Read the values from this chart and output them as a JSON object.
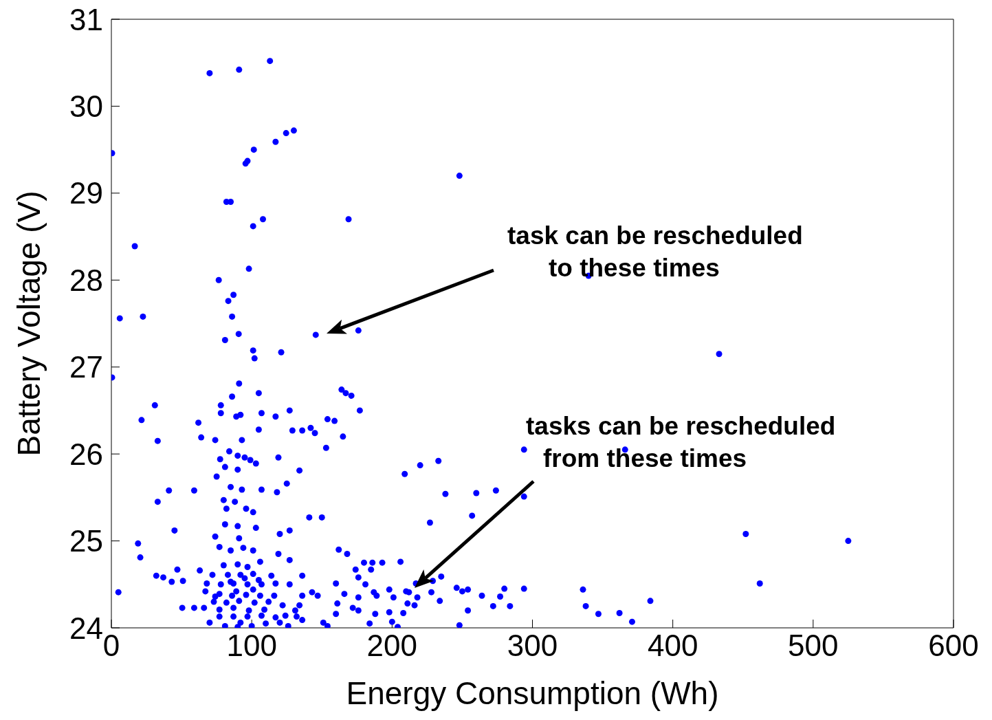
{
  "chart_data": {
    "type": "scatter",
    "xlabel": "Energy Consumption (Wh)",
    "ylabel": "Battery Voltage (V)",
    "xlim": [
      0,
      600
    ],
    "ylim": [
      24,
      31
    ],
    "xticks": [
      0,
      100,
      200,
      300,
      400,
      500,
      600
    ],
    "yticks": [
      24,
      25,
      26,
      27,
      28,
      29,
      30,
      31
    ],
    "color": "#0000ff",
    "marker": "circle",
    "x": [
      70,
      91,
      113,
      0.5,
      117,
      124.5,
      130,
      101.5,
      95.6,
      97,
      82,
      85,
      248,
      169,
      108,
      101,
      16.7,
      98,
      76.5,
      340,
      87,
      83.3,
      86,
      6,
      22.5,
      90.7,
      81,
      145.6,
      176,
      433,
      101,
      121,
      102,
      0.5,
      91,
      164,
      167,
      171,
      105,
      86,
      31,
      78,
      127,
      177,
      107,
      78,
      89,
      92,
      21.5,
      62,
      117,
      154,
      159,
      142,
      129,
      136,
      145,
      105,
      165,
      33,
      64,
      74,
      93,
      153,
      294,
      366,
      84,
      90,
      95,
      77.5,
      119,
      99,
      233,
      220,
      81,
      90,
      103,
      134,
      209,
      75,
      41,
      59,
      85,
      93,
      107,
      118,
      125,
      238,
      260,
      274,
      33,
      80,
      88,
      96,
      101,
      82,
      294,
      257,
      141,
      150,
      81,
      90,
      103,
      45,
      227,
      127,
      452,
      525,
      19,
      120,
      74,
      91,
      77,
      85,
      94,
      101,
      162,
      168,
      20.6,
      119,
      180,
      186,
      193,
      206,
      127,
      106,
      63,
      47,
      32,
      37,
      174,
      185,
      72,
      83,
      92,
      101,
      114,
      136,
      176,
      235,
      51,
      43,
      160,
      181,
      217,
      229,
      68,
      78,
      87,
      97,
      107,
      117,
      127,
      462,
      198,
      210,
      246,
      254,
      280,
      294,
      336,
      212,
      5,
      143,
      166,
      187,
      228,
      250,
      67,
      77,
      86,
      96,
      106,
      116,
      136,
      147,
      264,
      277,
      176,
      189,
      201,
      218,
      384,
      234,
      73,
      82,
      91,
      102,
      112,
      122,
      134,
      161,
      211,
      216,
      338,
      272,
      284,
      66,
      50.5,
      59,
      77,
      87,
      98,
      109,
      131,
      172,
      176,
      254,
      198,
      208,
      347,
      362,
      160,
      188,
      124,
      77,
      87,
      97,
      107,
      117,
      132,
      151,
      371,
      200,
      92,
      70,
      110,
      120,
      136,
      184,
      248,
      81,
      90,
      100,
      126,
      154,
      204,
      80,
      90,
      97,
      95,
      105,
      85,
      89,
      101,
      74
    ],
    "values": [
      30.38,
      30.42,
      30.52,
      29.46,
      29.59,
      29.69,
      29.72,
      29.5,
      29.34,
      29.37,
      28.9,
      28.9,
      29.2,
      28.7,
      28.7,
      28.62,
      28.39,
      28.13,
      28.0,
      28.05,
      27.83,
      27.76,
      27.58,
      27.56,
      27.58,
      27.38,
      27.31,
      27.37,
      27.42,
      27.15,
      27.19,
      27.17,
      27.1,
      26.88,
      26.81,
      26.74,
      26.7,
      26.67,
      26.7,
      26.66,
      26.56,
      26.56,
      26.5,
      26.5,
      26.47,
      26.47,
      26.43,
      26.45,
      26.39,
      26.36,
      26.43,
      26.4,
      26.38,
      26.3,
      26.27,
      26.27,
      26.24,
      26.28,
      26.2,
      26.15,
      26.19,
      26.16,
      26.16,
      26.07,
      26.05,
      26.05,
      26.03,
      25.98,
      25.96,
      25.94,
      25.96,
      25.93,
      25.92,
      25.87,
      25.85,
      25.82,
      25.89,
      25.81,
      25.77,
      25.74,
      25.58,
      25.58,
      25.62,
      25.59,
      25.59,
      25.56,
      25.66,
      25.54,
      25.55,
      25.58,
      25.45,
      25.47,
      25.45,
      25.37,
      25.33,
      25.37,
      25.51,
      25.29,
      25.27,
      25.27,
      25.19,
      25.17,
      25.15,
      25.12,
      25.21,
      25.12,
      25.08,
      25.0,
      24.97,
      25.08,
      25.05,
      25.03,
      24.93,
      24.89,
      24.92,
      24.89,
      24.9,
      24.85,
      24.81,
      24.85,
      24.75,
      24.75,
      24.75,
      24.76,
      24.78,
      24.76,
      24.66,
      24.67,
      24.6,
      24.58,
      24.67,
      24.67,
      24.61,
      24.61,
      24.61,
      24.62,
      24.6,
      24.6,
      24.58,
      24.59,
      24.54,
      24.53,
      24.51,
      24.5,
      24.51,
      24.54,
      24.51,
      24.5,
      24.51,
      24.5,
      24.5,
      24.51,
      24.5,
      24.51,
      24.44,
      24.42,
      24.46,
      24.44,
      24.45,
      24.45,
      24.44,
      24.41,
      24.41,
      24.41,
      24.39,
      24.41,
      24.41,
      24.42,
      24.42,
      24.39,
      24.37,
      24.38,
      24.37,
      24.37,
      24.37,
      24.37,
      24.37,
      24.36,
      24.35,
      24.37,
      24.35,
      24.35,
      24.31,
      24.31,
      24.3,
      24.29,
      24.31,
      24.29,
      24.3,
      24.26,
      24.26,
      24.28,
      24.28,
      24.26,
      24.25,
      24.25,
      24.25,
      24.23,
      24.23,
      24.23,
      24.21,
      24.23,
      24.2,
      24.21,
      24.2,
      24.23,
      24.2,
      24.2,
      24.18,
      24.17,
      24.16,
      24.17,
      24.16,
      24.16,
      24.14,
      24.13,
      24.13,
      24.13,
      24.14,
      24.12,
      24.13,
      24.06,
      24.07,
      24.07,
      24.06,
      24.06,
      24.05,
      24.06,
      24.09,
      24.05,
      24.03,
      24.02,
      24.01,
      24.02,
      24.02,
      24.02,
      24.01,
      24.72,
      24.73,
      24.7,
      24.57,
      24.55,
      24.53,
      24.42,
      24.44,
      24.36
    ],
    "annotations": [
      "task can be rescheduled\nto these times",
      "tasks can be rescheduled\nfrom these times"
    ]
  }
}
